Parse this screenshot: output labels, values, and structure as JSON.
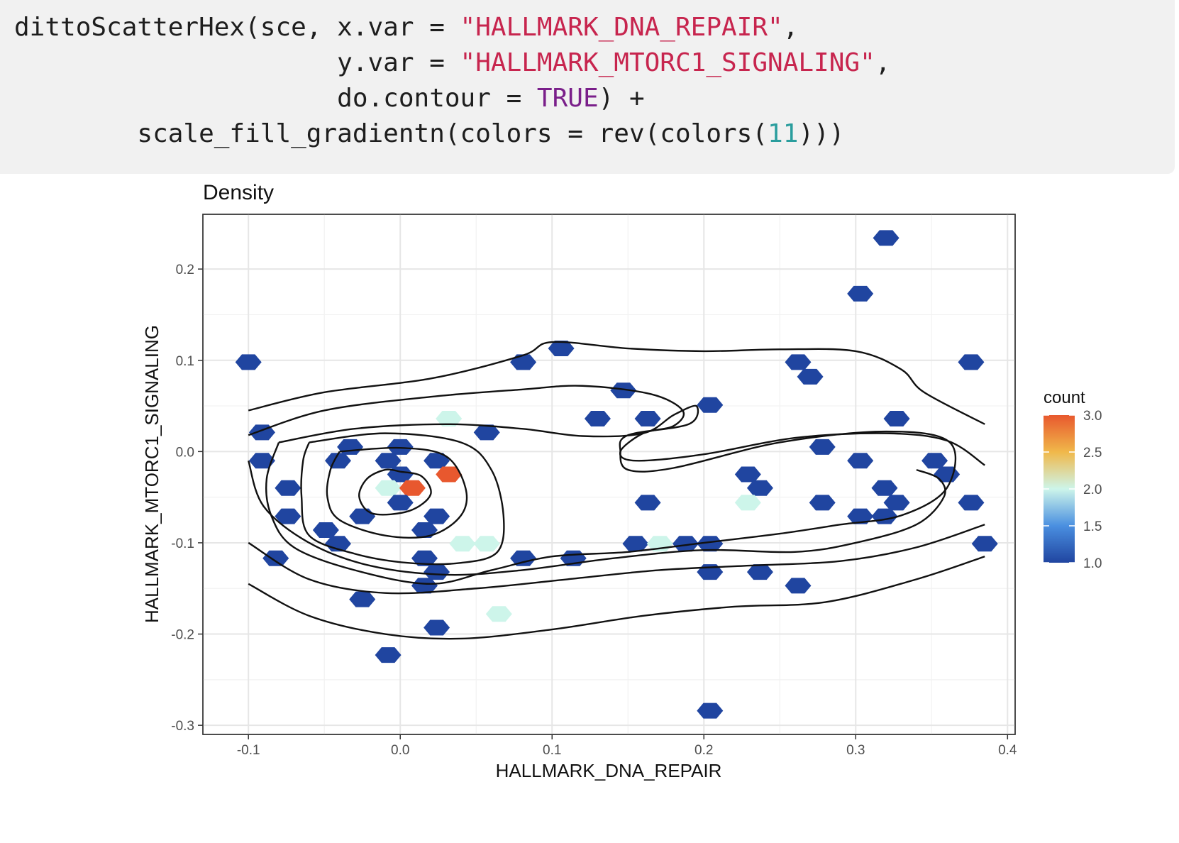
{
  "code": {
    "lines": [
      [
        {
          "t": "plain",
          "v": "dittoScatterHex(sce, x.var = "
        },
        {
          "t": "str",
          "v": "\"HALLMARK_DNA_REPAIR\""
        },
        {
          "t": "plain",
          "v": ","
        }
      ],
      [
        {
          "t": "plain",
          "v": "                     y.var = "
        },
        {
          "t": "str",
          "v": "\"HALLMARK_MTORC1_SIGNALING\""
        },
        {
          "t": "plain",
          "v": ","
        }
      ],
      [
        {
          "t": "plain",
          "v": "                     do.contour = "
        },
        {
          "t": "bool",
          "v": "TRUE"
        },
        {
          "t": "plain",
          "v": ") +"
        }
      ],
      [
        {
          "t": "plain",
          "v": "        scale_fill_gradientn(colors = rev(colors("
        },
        {
          "t": "num",
          "v": "11"
        },
        {
          "t": "plain",
          "v": ")))"
        }
      ]
    ]
  },
  "chart_data": {
    "type": "scatter",
    "subtype": "hexbin-density-with-contours",
    "title": "Density",
    "xlabel": "HALLMARK_DNA_REPAIR",
    "ylabel": "HALLMARK_MTORC1_SIGNALING",
    "xlim": [
      -0.13,
      0.405
    ],
    "ylim": [
      -0.31,
      0.26
    ],
    "x_ticks": [
      -0.1,
      0.0,
      0.1,
      0.2,
      0.3,
      0.4
    ],
    "x_tick_labels": [
      "-0.1",
      "0.0",
      "0.1",
      "0.2",
      "0.3",
      "0.4"
    ],
    "y_ticks": [
      -0.3,
      -0.2,
      -0.1,
      0.0,
      0.1,
      0.2
    ],
    "y_tick_labels": [
      "-0.3",
      "-0.2",
      "-0.1",
      "0.0",
      "0.1",
      "0.2"
    ],
    "grid": true,
    "legend": {
      "title": "count",
      "placement": "right",
      "min": 1.0,
      "max": 3.0,
      "tick_values": [
        1.0,
        1.5,
        2.0,
        2.5,
        3.0
      ],
      "tick_labels": [
        "1.0",
        "1.5",
        "2.0",
        "2.5",
        "3.0"
      ],
      "colors": [
        "#2045a0",
        "#4a8fe0",
        "#cdf5ea",
        "#f0b84a",
        "#e8582e"
      ]
    },
    "hex_cells": [
      {
        "x": 0.32,
        "y": 0.234,
        "count": 1
      },
      {
        "x": 0.303,
        "y": 0.173,
        "count": 1
      },
      {
        "x": -0.1,
        "y": 0.098,
        "count": 1
      },
      {
        "x": 0.106,
        "y": 0.113,
        "count": 1
      },
      {
        "x": 0.081,
        "y": 0.098,
        "count": 1
      },
      {
        "x": 0.262,
        "y": 0.098,
        "count": 1
      },
      {
        "x": 0.376,
        "y": 0.098,
        "count": 1
      },
      {
        "x": 0.27,
        "y": 0.082,
        "count": 1
      },
      {
        "x": 0.147,
        "y": 0.067,
        "count": 1
      },
      {
        "x": 0.204,
        "y": 0.051,
        "count": 1
      },
      {
        "x": 0.13,
        "y": 0.036,
        "count": 1
      },
      {
        "x": 0.163,
        "y": 0.036,
        "count": 1
      },
      {
        "x": 0.327,
        "y": 0.036,
        "count": 1
      },
      {
        "x": 0.032,
        "y": 0.036,
        "count": 2
      },
      {
        "x": -0.091,
        "y": 0.021,
        "count": 1
      },
      {
        "x": 0.057,
        "y": 0.021,
        "count": 1
      },
      {
        "x": -0.033,
        "y": 0.005,
        "count": 1
      },
      {
        "x": 0.0,
        "y": 0.005,
        "count": 1
      },
      {
        "x": 0.278,
        "y": 0.005,
        "count": 1
      },
      {
        "x": -0.091,
        "y": -0.01,
        "count": 1
      },
      {
        "x": -0.041,
        "y": -0.01,
        "count": 1
      },
      {
        "x": -0.008,
        "y": -0.01,
        "count": 1
      },
      {
        "x": 0.024,
        "y": -0.01,
        "count": 1
      },
      {
        "x": 0.303,
        "y": -0.01,
        "count": 1
      },
      {
        "x": 0.352,
        "y": -0.01,
        "count": 1
      },
      {
        "x": 0.0,
        "y": -0.025,
        "count": 1
      },
      {
        "x": 0.032,
        "y": -0.025,
        "count": 3
      },
      {
        "x": 0.229,
        "y": -0.025,
        "count": 1
      },
      {
        "x": 0.36,
        "y": -0.025,
        "count": 1
      },
      {
        "x": -0.074,
        "y": -0.04,
        "count": 1
      },
      {
        "x": -0.008,
        "y": -0.04,
        "count": 2
      },
      {
        "x": 0.008,
        "y": -0.04,
        "count": 3
      },
      {
        "x": 0.237,
        "y": -0.04,
        "count": 1
      },
      {
        "x": 0.319,
        "y": -0.04,
        "count": 1
      },
      {
        "x": 0.0,
        "y": -0.056,
        "count": 1
      },
      {
        "x": 0.163,
        "y": -0.056,
        "count": 1
      },
      {
        "x": 0.229,
        "y": -0.056,
        "count": 2
      },
      {
        "x": 0.278,
        "y": -0.056,
        "count": 1
      },
      {
        "x": 0.327,
        "y": -0.056,
        "count": 1
      },
      {
        "x": 0.376,
        "y": -0.056,
        "count": 1
      },
      {
        "x": -0.074,
        "y": -0.071,
        "count": 1
      },
      {
        "x": -0.025,
        "y": -0.071,
        "count": 1
      },
      {
        "x": 0.024,
        "y": -0.071,
        "count": 1
      },
      {
        "x": 0.303,
        "y": -0.071,
        "count": 1
      },
      {
        "x": 0.319,
        "y": -0.071,
        "count": 1
      },
      {
        "x": -0.049,
        "y": -0.086,
        "count": 1
      },
      {
        "x": 0.016,
        "y": -0.086,
        "count": 1
      },
      {
        "x": -0.041,
        "y": -0.101,
        "count": 1
      },
      {
        "x": 0.041,
        "y": -0.101,
        "count": 2
      },
      {
        "x": 0.057,
        "y": -0.101,
        "count": 2
      },
      {
        "x": 0.155,
        "y": -0.101,
        "count": 1
      },
      {
        "x": 0.171,
        "y": -0.101,
        "count": 2
      },
      {
        "x": 0.188,
        "y": -0.101,
        "count": 1
      },
      {
        "x": 0.204,
        "y": -0.101,
        "count": 1
      },
      {
        "x": 0.385,
        "y": -0.101,
        "count": 1
      },
      {
        "x": -0.082,
        "y": -0.117,
        "count": 1
      },
      {
        "x": 0.016,
        "y": -0.117,
        "count": 1
      },
      {
        "x": 0.081,
        "y": -0.117,
        "count": 1
      },
      {
        "x": 0.114,
        "y": -0.117,
        "count": 1
      },
      {
        "x": 0.024,
        "y": -0.132,
        "count": 1
      },
      {
        "x": 0.204,
        "y": -0.132,
        "count": 1
      },
      {
        "x": 0.237,
        "y": -0.132,
        "count": 1
      },
      {
        "x": 0.016,
        "y": -0.147,
        "count": 1
      },
      {
        "x": 0.262,
        "y": -0.147,
        "count": 1
      },
      {
        "x": -0.025,
        "y": -0.162,
        "count": 1
      },
      {
        "x": 0.065,
        "y": -0.178,
        "count": 2
      },
      {
        "x": 0.024,
        "y": -0.193,
        "count": 1
      },
      {
        "x": -0.008,
        "y": -0.223,
        "count": 1
      },
      {
        "x": 0.204,
        "y": -0.284,
        "count": 1
      }
    ],
    "contours": [
      [
        [
          0.0,
          -0.022
        ],
        [
          0.014,
          -0.027
        ],
        [
          0.02,
          -0.047
        ],
        [
          0.006,
          -0.065
        ],
        [
          -0.018,
          -0.068
        ],
        [
          -0.027,
          -0.05
        ],
        [
          -0.022,
          -0.03
        ],
        [
          -0.01,
          -0.02
        ],
        [
          0.0,
          -0.022
        ]
      ],
      [
        [
          -0.04,
          0.0
        ],
        [
          0.0,
          0.004
        ],
        [
          0.03,
          -0.005
        ],
        [
          0.043,
          -0.04
        ],
        [
          0.04,
          -0.07
        ],
        [
          0.02,
          -0.092
        ],
        [
          -0.01,
          -0.092
        ],
        [
          -0.04,
          -0.075
        ],
        [
          -0.048,
          -0.05
        ],
        [
          -0.046,
          -0.02
        ],
        [
          -0.04,
          0.0
        ]
      ],
      [
        [
          -0.06,
          0.01
        ],
        [
          -0.01,
          0.02
        ],
        [
          0.04,
          0.01
        ],
        [
          0.06,
          -0.02
        ],
        [
          0.068,
          -0.07
        ],
        [
          0.064,
          -0.11
        ],
        [
          0.04,
          -0.122
        ],
        [
          0.005,
          -0.122
        ],
        [
          -0.03,
          -0.112
        ],
        [
          -0.06,
          -0.092
        ],
        [
          -0.065,
          -0.05
        ],
        [
          -0.064,
          -0.01
        ],
        [
          -0.06,
          0.01
        ]
      ],
      [
        [
          -0.08,
          0.01
        ],
        [
          -0.03,
          0.025
        ],
        [
          0.03,
          0.03
        ],
        [
          0.08,
          0.025
        ],
        [
          0.12,
          0.017
        ],
        [
          0.16,
          0.02
        ],
        [
          0.18,
          0.04
        ],
        [
          0.195,
          0.05
        ],
        [
          0.19,
          0.03
        ],
        [
          0.15,
          0.018
        ],
        [
          0.145,
          0.0
        ],
        [
          0.15,
          -0.02
        ],
        [
          0.18,
          -0.018
        ],
        [
          0.25,
          0.01
        ],
        [
          0.32,
          0.022
        ],
        [
          0.362,
          0.01
        ],
        [
          0.36,
          -0.04
        ],
        [
          0.33,
          -0.07
        ],
        [
          0.29,
          -0.08
        ],
        [
          0.25,
          -0.09
        ],
        [
          0.2,
          -0.1
        ],
        [
          0.15,
          -0.11
        ],
        [
          0.1,
          -0.115
        ],
        [
          0.06,
          -0.13
        ],
        [
          0.02,
          -0.145
        ],
        [
          -0.03,
          -0.13
        ],
        [
          -0.07,
          -0.105
        ],
        [
          -0.085,
          -0.07
        ],
        [
          -0.088,
          -0.03
        ],
        [
          -0.08,
          0.01
        ]
      ],
      [
        [
          -0.1,
          0.018
        ],
        [
          -0.05,
          0.045
        ],
        [
          0.02,
          0.06
        ],
        [
          0.08,
          0.068
        ],
        [
          0.12,
          0.072
        ],
        [
          0.165,
          0.063
        ],
        [
          0.186,
          0.045
        ],
        [
          0.18,
          0.028
        ],
        [
          0.16,
          0.02
        ],
        [
          0.145,
          0.0
        ],
        [
          0.155,
          -0.01
        ],
        [
          0.2,
          -0.003
        ],
        [
          0.26,
          0.015
        ],
        [
          0.32,
          0.02
        ],
        [
          0.36,
          0.012
        ],
        [
          0.385,
          -0.015
        ]
      ],
      [
        [
          -0.1,
          -0.01
        ],
        [
          -0.09,
          -0.06
        ],
        [
          -0.06,
          -0.1
        ],
        [
          -0.02,
          -0.125
        ],
        [
          0.03,
          -0.135
        ],
        [
          0.08,
          -0.13
        ],
        [
          0.14,
          -0.117
        ],
        [
          0.2,
          -0.108
        ],
        [
          0.26,
          -0.11
        ],
        [
          0.3,
          -0.1
        ],
        [
          0.34,
          -0.08
        ],
        [
          0.358,
          -0.05
        ],
        [
          0.355,
          -0.03
        ],
        [
          0.34,
          -0.02
        ]
      ],
      [
        [
          -0.1,
          -0.1
        ],
        [
          -0.06,
          -0.14
        ],
        [
          -0.01,
          -0.155
        ],
        [
          0.05,
          -0.15
        ],
        [
          0.11,
          -0.14
        ],
        [
          0.17,
          -0.13
        ],
        [
          0.23,
          -0.125
        ],
        [
          0.29,
          -0.12
        ],
        [
          0.34,
          -0.105
        ],
        [
          0.385,
          -0.08
        ]
      ],
      [
        [
          -0.1,
          -0.145
        ],
        [
          -0.06,
          -0.18
        ],
        [
          -0.01,
          -0.2
        ],
        [
          0.04,
          -0.205
        ],
        [
          0.1,
          -0.195
        ],
        [
          0.16,
          -0.18
        ],
        [
          0.22,
          -0.17
        ],
        [
          0.28,
          -0.165
        ],
        [
          0.34,
          -0.14
        ],
        [
          0.385,
          -0.115
        ]
      ],
      [
        [
          -0.1,
          0.045
        ],
        [
          -0.05,
          0.065
        ],
        [
          0.02,
          0.08
        ],
        [
          0.08,
          0.105
        ],
        [
          0.1,
          0.12
        ],
        [
          0.15,
          0.113
        ],
        [
          0.2,
          0.11
        ],
        [
          0.25,
          0.112
        ],
        [
          0.3,
          0.11
        ],
        [
          0.33,
          0.09
        ],
        [
          0.345,
          0.065
        ],
        [
          0.385,
          0.03
        ]
      ]
    ]
  }
}
